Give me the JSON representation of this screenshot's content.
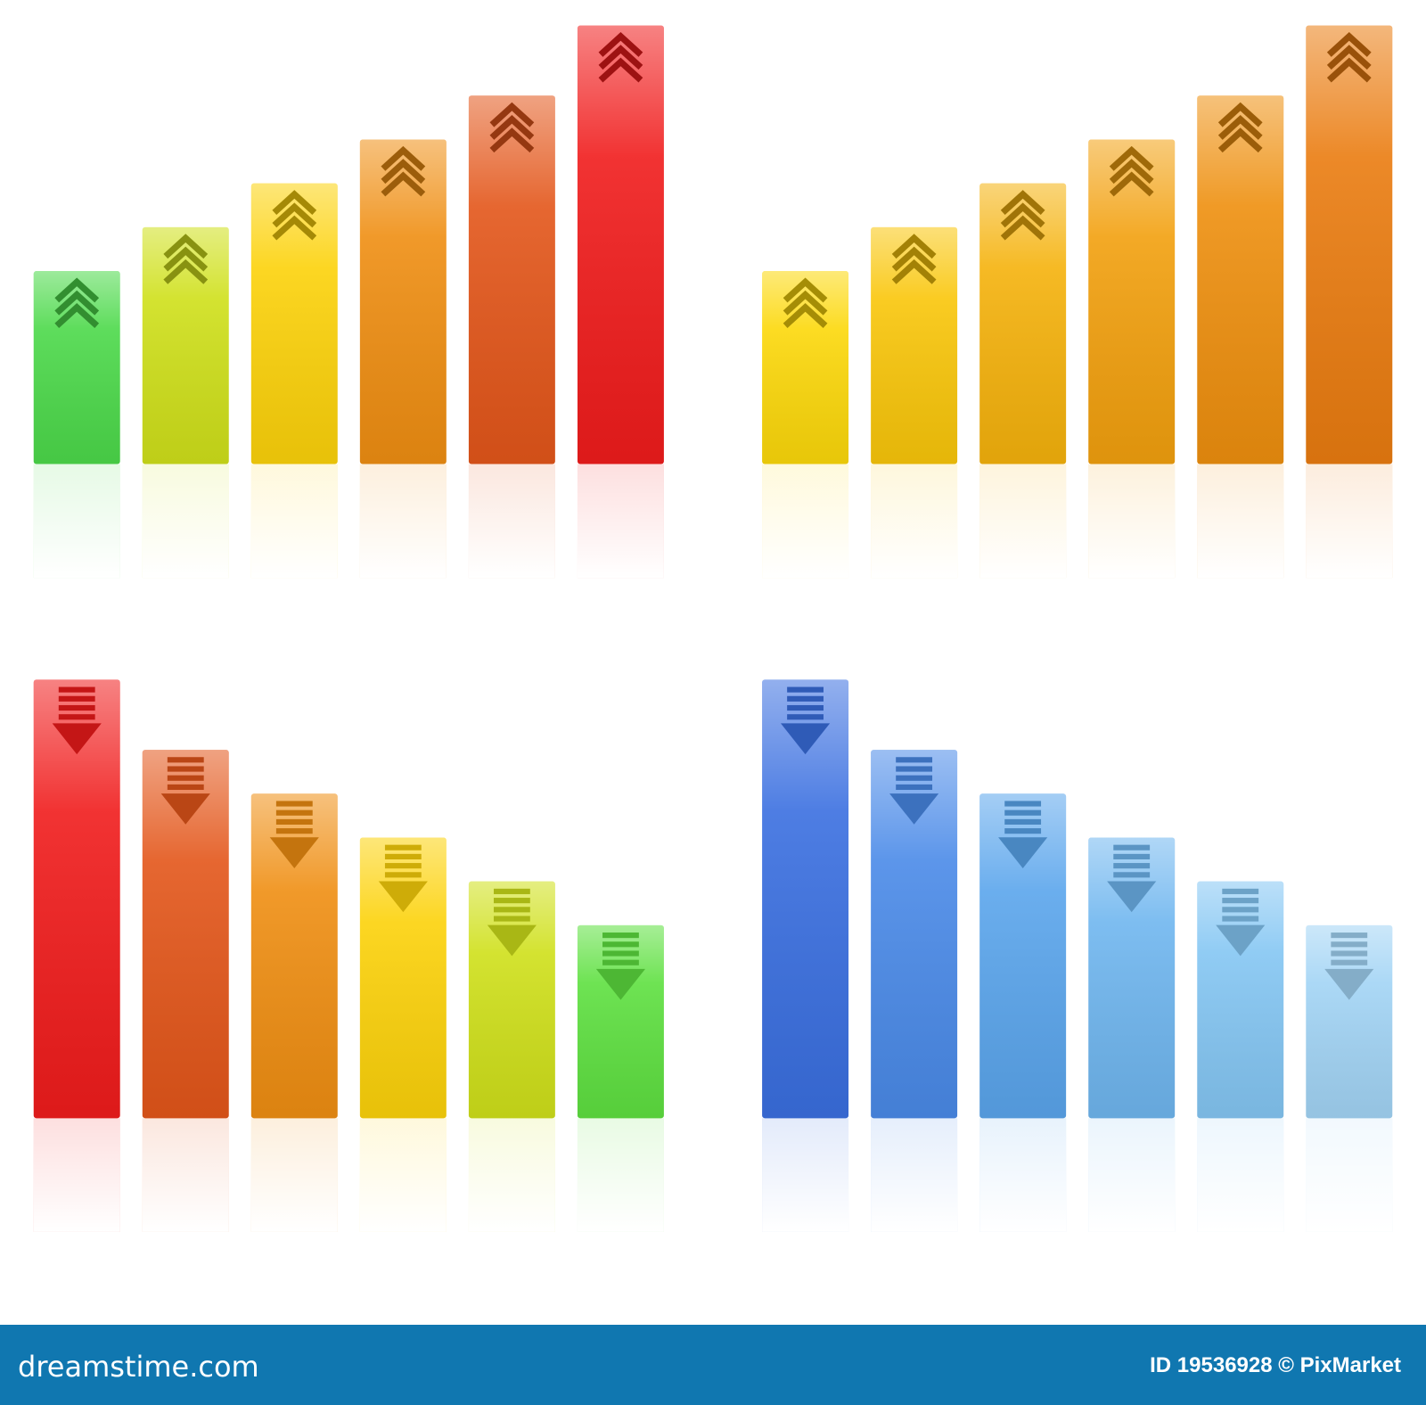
{
  "chart_data": [
    {
      "type": "bar",
      "direction_icon": "chevron-up-icon",
      "values": [
        44,
        54,
        64,
        74,
        84,
        100
      ],
      "colors": [
        "#4cd94a",
        "#cfe01a",
        "#fcd20a",
        "#ef8e12",
        "#e3561a",
        "#f01c1c"
      ]
    },
    {
      "type": "bar",
      "direction_icon": "chevron-up-icon",
      "values": [
        44,
        54,
        64,
        74,
        84,
        100
      ],
      "colors": [
        "#fcd80a",
        "#f9c60a",
        "#f5b20c",
        "#f2a00e",
        "#ee8f0e",
        "#ea7c10"
      ]
    },
    {
      "type": "bar",
      "direction_icon": "arrow-down-icon",
      "values": [
        100,
        84,
        74,
        64,
        54,
        44
      ],
      "colors": [
        "#f01c1c",
        "#e3561a",
        "#ef8e12",
        "#fcd20a",
        "#cfe01a",
        "#5ee040"
      ]
    },
    {
      "type": "bar",
      "direction_icon": "arrow-down-icon",
      "values": [
        100,
        84,
        74,
        64,
        54,
        44
      ],
      "colors": [
        "#3a6fe0",
        "#4a8ae8",
        "#5aa5ec",
        "#6fb6ef",
        "#84c6f3",
        "#a2d4f5"
      ]
    }
  ],
  "footer": {
    "logo": "dreamstime.com",
    "credit": "ID 19536928 © PixMarket",
    "background": "#1077b0"
  }
}
